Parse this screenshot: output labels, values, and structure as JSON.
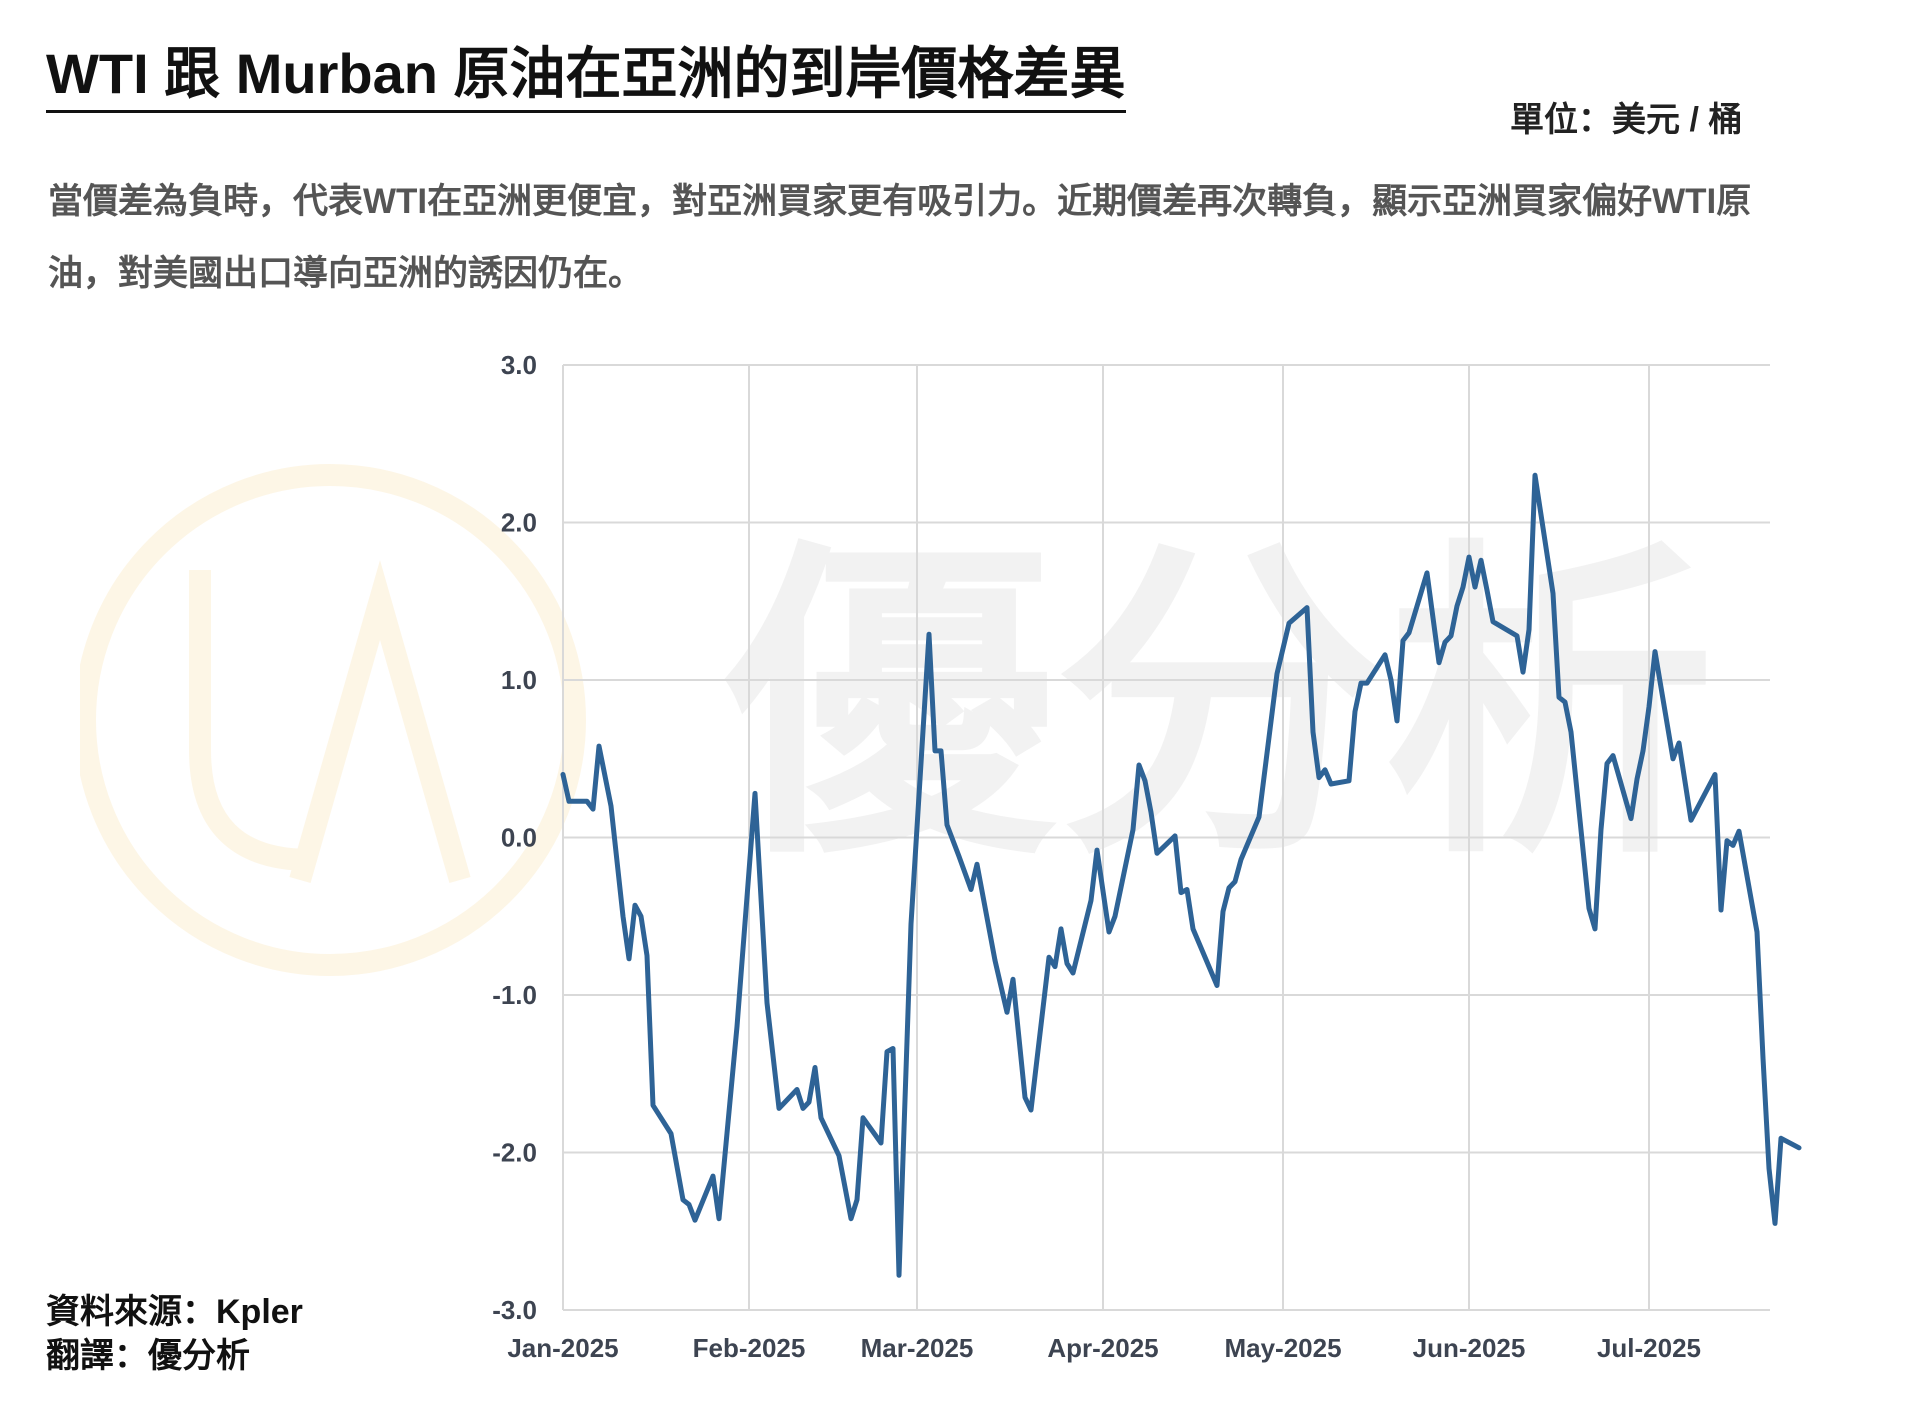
{
  "title": "WTI 跟 Murban 原油在亞洲的到岸價格差異",
  "unit": "單位：美元 / 桶",
  "subtitle": "當價差為負時，代表WTI在亞洲更便宜，對亞洲買家更有吸引力。近期價差再次轉負，顯示亞洲買家偏好WTI原油，對美國出口導向亞洲的誘因仍在。",
  "source_line": "資料來源：Kpler",
  "translate_line": "翻譯：優分析",
  "watermark_text": "優分析",
  "colors": {
    "line": "#2e6396",
    "grid": "#d9d9d9",
    "watermark_ring": "#f0b73c",
    "watermark_text": "#9a9a9a"
  },
  "chart_data": {
    "type": "line",
    "x_start": "2025-01-01",
    "x_ticks": [
      "Jan-2025",
      "Feb-2025",
      "Mar-2025",
      "Apr-2025",
      "May-2025",
      "Jun-2025",
      "Jul-2025"
    ],
    "y_ticks": [
      "3.0",
      "2.0",
      "1.0",
      "0.0",
      "-1.0",
      "-2.0",
      "-3.0"
    ],
    "ylim": [
      -3.0,
      3.0
    ],
    "grid": true,
    "series": [
      {
        "name": "",
        "points": [
          [
            "2025-01-01",
            0.4
          ],
          [
            "2025-01-02",
            0.23
          ],
          [
            "2025-01-03",
            0.23
          ],
          [
            "2025-01-05",
            0.23
          ],
          [
            "2025-01-06",
            0.18
          ],
          [
            "2025-01-07",
            0.58
          ],
          [
            "2025-01-09",
            0.2
          ],
          [
            "2025-01-11",
            -0.5
          ],
          [
            "2025-01-12",
            -0.77
          ],
          [
            "2025-01-13",
            -0.43
          ],
          [
            "2025-01-14",
            -0.5
          ],
          [
            "2025-01-15",
            -0.75
          ],
          [
            "2025-01-16",
            -1.7
          ],
          [
            "2025-01-19",
            -1.88
          ],
          [
            "2025-01-21",
            -2.3
          ],
          [
            "2025-01-22",
            -2.33
          ],
          [
            "2025-01-23",
            -2.43
          ],
          [
            "2025-01-26",
            -2.15
          ],
          [
            "2025-01-27",
            -2.42
          ],
          [
            "2025-01-30",
            -1.2
          ],
          [
            "2025-02-02",
            0.28
          ],
          [
            "2025-02-04",
            -1.05
          ],
          [
            "2025-02-06",
            -1.72
          ],
          [
            "2025-02-07",
            -1.68
          ],
          [
            "2025-02-09",
            -1.6
          ],
          [
            "2025-02-10",
            -1.72
          ],
          [
            "2025-02-11",
            -1.68
          ],
          [
            "2025-02-12",
            -1.46
          ],
          [
            "2025-02-13",
            -1.78
          ],
          [
            "2025-02-16",
            -2.02
          ],
          [
            "2025-02-18",
            -2.42
          ],
          [
            "2025-02-19",
            -2.3
          ],
          [
            "2025-02-20",
            -1.78
          ],
          [
            "2025-02-23",
            -1.94
          ],
          [
            "2025-02-24",
            -1.36
          ],
          [
            "2025-02-25",
            -1.34
          ],
          [
            "2025-02-26",
            -2.78
          ],
          [
            "2025-02-28",
            -0.55
          ],
          [
            "2025-03-03",
            1.29
          ],
          [
            "2025-03-04",
            0.55
          ],
          [
            "2025-03-05",
            0.55
          ],
          [
            "2025-03-06",
            0.08
          ],
          [
            "2025-03-08",
            -0.12
          ],
          [
            "2025-03-10",
            -0.33
          ],
          [
            "2025-03-11",
            -0.17
          ],
          [
            "2025-03-14",
            -0.78
          ],
          [
            "2025-03-16",
            -1.11
          ],
          [
            "2025-03-17",
            -0.9
          ],
          [
            "2025-03-19",
            -1.65
          ],
          [
            "2025-03-20",
            -1.73
          ],
          [
            "2025-03-23",
            -0.76
          ],
          [
            "2025-03-24",
            -0.82
          ],
          [
            "2025-03-25",
            -0.58
          ],
          [
            "2025-03-26",
            -0.8
          ],
          [
            "2025-03-27",
            -0.86
          ],
          [
            "2025-03-30",
            -0.4
          ],
          [
            "2025-03-31",
            -0.08
          ],
          [
            "2025-04-02",
            -0.6
          ],
          [
            "2025-04-03",
            -0.5
          ],
          [
            "2025-04-06",
            0.05
          ],
          [
            "2025-04-07",
            0.46
          ],
          [
            "2025-04-08",
            0.36
          ],
          [
            "2025-04-09",
            0.16
          ],
          [
            "2025-04-10",
            -0.1
          ],
          [
            "2025-04-13",
            0.01
          ],
          [
            "2025-04-14",
            -0.35
          ],
          [
            "2025-04-15",
            -0.33
          ],
          [
            "2025-04-16",
            -0.58
          ],
          [
            "2025-04-19",
            -0.85
          ],
          [
            "2025-04-20",
            -0.94
          ],
          [
            "2025-04-21",
            -0.47
          ],
          [
            "2025-04-22",
            -0.32
          ],
          [
            "2025-04-23",
            -0.28
          ],
          [
            "2025-04-24",
            -0.14
          ],
          [
            "2025-04-27",
            0.13
          ],
          [
            "2025-04-30",
            1.04
          ],
          [
            "2025-05-02",
            1.36
          ],
          [
            "2025-05-05",
            1.46
          ],
          [
            "2025-05-06",
            0.67
          ],
          [
            "2025-05-07",
            0.38
          ],
          [
            "2025-05-08",
            0.43
          ],
          [
            "2025-05-09",
            0.34
          ],
          [
            "2025-05-12",
            0.36
          ],
          [
            "2025-05-13",
            0.8
          ],
          [
            "2025-05-14",
            0.98
          ],
          [
            "2025-05-15",
            0.98
          ],
          [
            "2025-05-18",
            1.16
          ],
          [
            "2025-05-19",
            1.0
          ],
          [
            "2025-05-20",
            0.74
          ],
          [
            "2025-05-21",
            1.25
          ],
          [
            "2025-05-22",
            1.3
          ],
          [
            "2025-05-25",
            1.68
          ],
          [
            "2025-05-27",
            1.11
          ],
          [
            "2025-05-28",
            1.24
          ],
          [
            "2025-05-29",
            1.28
          ],
          [
            "2025-05-30",
            1.47
          ],
          [
            "2025-05-31",
            1.59
          ],
          [
            "2025-06-01",
            1.78
          ],
          [
            "2025-06-02",
            1.59
          ],
          [
            "2025-06-03",
            1.76
          ],
          [
            "2025-06-04",
            1.57
          ],
          [
            "2025-06-05",
            1.37
          ],
          [
            "2025-06-09",
            1.28
          ],
          [
            "2025-06-10",
            1.05
          ],
          [
            "2025-06-11",
            1.32
          ],
          [
            "2025-06-12",
            2.3
          ],
          [
            "2025-06-15",
            1.55
          ],
          [
            "2025-06-16",
            0.89
          ],
          [
            "2025-06-17",
            0.86
          ],
          [
            "2025-06-18",
            0.67
          ],
          [
            "2025-06-21",
            -0.45
          ],
          [
            "2025-06-22",
            -0.58
          ],
          [
            "2025-06-23",
            0.05
          ],
          [
            "2025-06-24",
            0.47
          ],
          [
            "2025-06-25",
            0.52
          ],
          [
            "2025-06-28",
            0.12
          ],
          [
            "2025-06-29",
            0.37
          ],
          [
            "2025-06-30",
            0.55
          ],
          [
            "2025-07-01",
            0.83
          ],
          [
            "2025-07-02",
            1.18
          ],
          [
            "2025-07-05",
            0.5
          ],
          [
            "2025-07-06",
            0.6
          ],
          [
            "2025-07-08",
            0.11
          ],
          [
            "2025-07-12",
            0.4
          ],
          [
            "2025-07-13",
            -0.46
          ],
          [
            "2025-07-14",
            -0.02
          ],
          [
            "2025-07-15",
            -0.05
          ],
          [
            "2025-07-16",
            0.04
          ],
          [
            "2025-07-19",
            -0.6
          ],
          [
            "2025-07-20",
            -1.4
          ],
          [
            "2025-07-21",
            -2.1
          ],
          [
            "2025-07-22",
            -2.45
          ],
          [
            "2025-07-23",
            -1.91
          ],
          [
            "2025-07-26",
            -1.97
          ]
        ]
      }
    ]
  }
}
